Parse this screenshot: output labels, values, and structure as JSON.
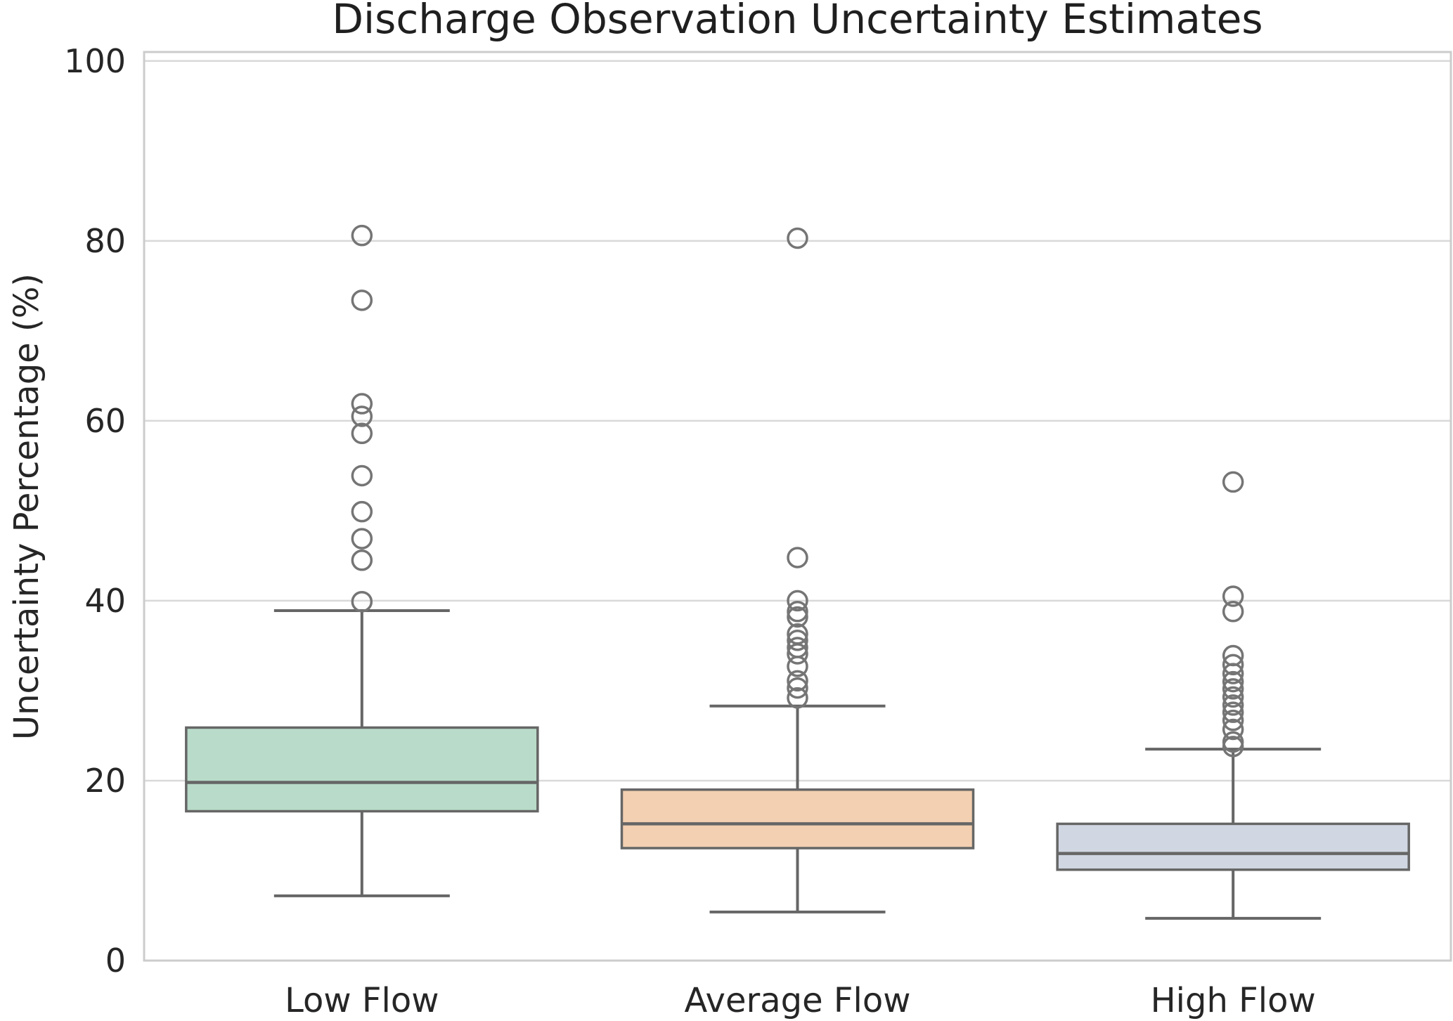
{
  "chart_data": {
    "type": "box",
    "title": "Discharge Observation Uncertainty Estimates",
    "ylabel": "Uncertainty Percentage (%)",
    "xlabel": "",
    "categories": [
      "Low Flow",
      "Average Flow",
      "High Flow"
    ],
    "yticks": [
      0,
      20,
      40,
      60,
      80,
      100
    ],
    "ylim": [
      0,
      101
    ],
    "grid": "horizontal-only",
    "legend": "none",
    "series": [
      {
        "name": "Low Flow",
        "fill": "#b9dbc9",
        "whisker_low": 7.2,
        "q1": 16.6,
        "median": 19.8,
        "q3": 25.9,
        "whisker_high": 38.9,
        "outliers": [
          39.9,
          44.5,
          46.9,
          49.9,
          53.9,
          58.6,
          60.5,
          61.9,
          73.4,
          80.6
        ]
      },
      {
        "name": "Average Flow",
        "fill": "#f3d0b1",
        "whisker_low": 5.4,
        "q1": 12.5,
        "median": 15.2,
        "q3": 19.0,
        "whisker_high": 28.3,
        "outliers": [
          29.2,
          30.3,
          31.1,
          32.7,
          34.1,
          34.8,
          35.6,
          36.3,
          38.2,
          38.8,
          40.0,
          44.8,
          80.3
        ]
      },
      {
        "name": "High Flow",
        "fill": "#d0d7e2",
        "whisker_low": 4.7,
        "q1": 10.1,
        "median": 11.9,
        "q3": 15.2,
        "whisker_high": 23.5,
        "outliers": [
          23.8,
          24.3,
          25.7,
          26.7,
          27.6,
          28.4,
          29.3,
          30.2,
          31.0,
          31.9,
          32.9,
          33.9,
          38.8,
          40.5,
          53.2
        ]
      }
    ],
    "colors": {
      "box_edge": "#666666",
      "median": "#666666",
      "whisker": "#666666",
      "outlier": "#757575",
      "gridline": "#d9d9d9",
      "spine": "#cccccc",
      "text": "#262626"
    }
  }
}
